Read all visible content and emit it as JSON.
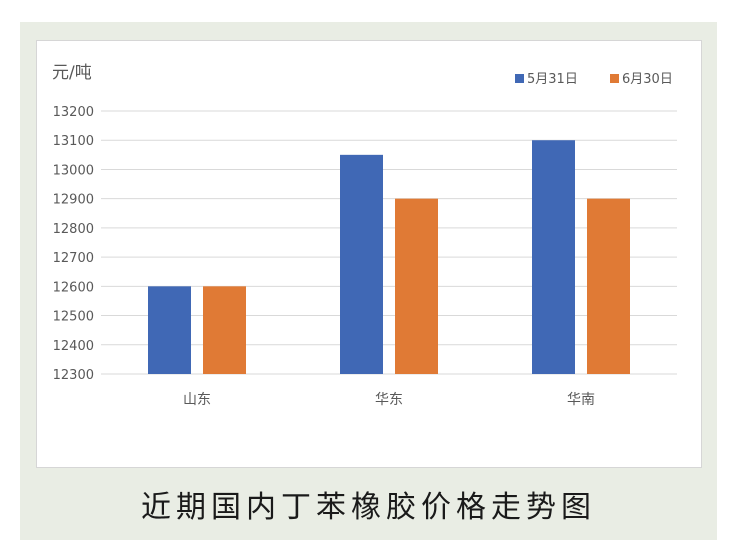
{
  "caption": "近期国内丁苯橡胶价格走势图",
  "chart_data": {
    "type": "bar",
    "title": "",
    "ylabel": "元/吨",
    "xlabel": "",
    "categories": [
      "山东",
      "华东",
      "华南"
    ],
    "series": [
      {
        "name": "5月31日",
        "values": [
          12600,
          13050,
          13100
        ],
        "color": "#4068b5"
      },
      {
        "name": "6月30日",
        "values": [
          12600,
          12900,
          12900
        ],
        "color": "#e07a35"
      }
    ],
    "ylim": [
      12300,
      13200
    ],
    "yticks": [
      12300,
      12400,
      12500,
      12600,
      12700,
      12800,
      12900,
      13000,
      13100,
      13200
    ],
    "grid": true,
    "legend": "top-right",
    "colors": {
      "gridline": "#d9d9d9",
      "axis_text": "#595959"
    }
  }
}
